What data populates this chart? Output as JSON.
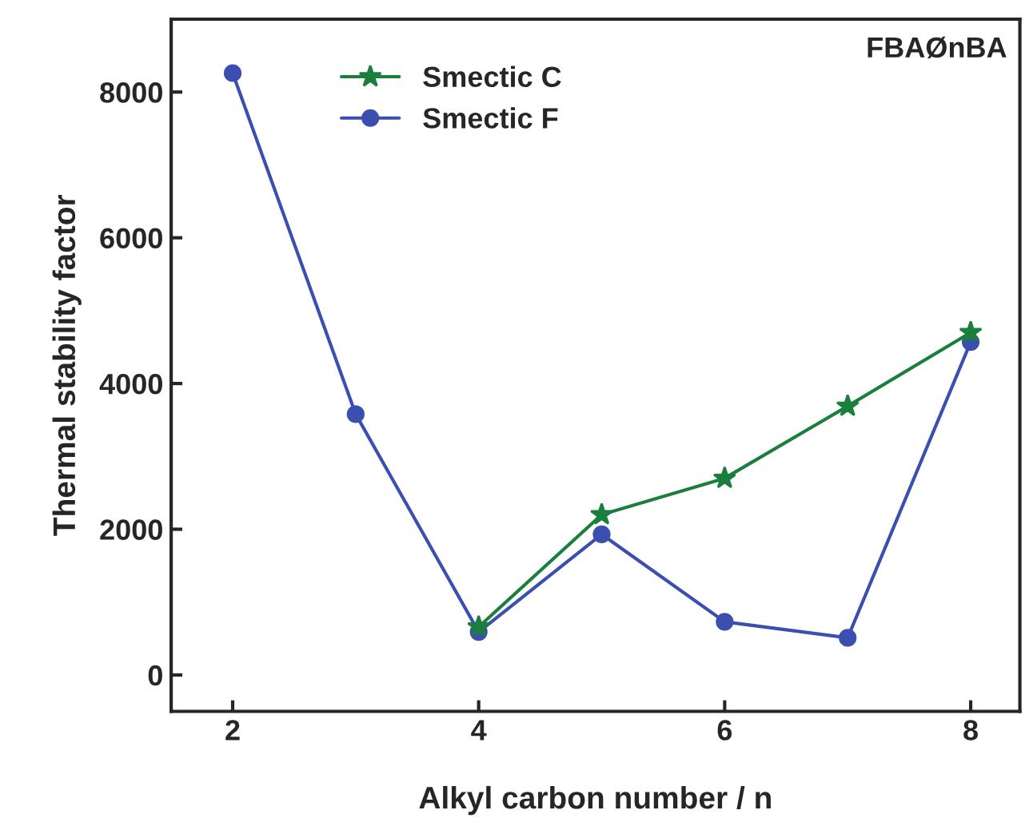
{
  "chart_data": {
    "type": "line",
    "xlabel": "Alkyl carbon number / n",
    "ylabel": "Thermal stability factor",
    "annotations": [
      "FBAØnBA"
    ],
    "series": [
      {
        "name": "Smectic C",
        "color": "#1a7f3c",
        "marker": "star",
        "x": [
          4,
          5,
          6,
          7,
          8
        ],
        "values": [
          660,
          2200,
          2700,
          3690,
          4700
        ]
      },
      {
        "name": "Smectic F",
        "color": "#3a4fb0",
        "marker": "circle",
        "x": [
          2,
          3,
          4,
          5,
          6,
          7,
          8
        ],
        "values": [
          8260,
          3580,
          590,
          1930,
          730,
          510,
          4570
        ]
      }
    ],
    "xlim": [
      1.5,
      8.4
    ],
    "xticks": [
      2,
      4,
      6,
      8
    ],
    "ylim": [
      -500,
      9000
    ],
    "yticks": [
      0,
      2000,
      4000,
      6000,
      8000
    ],
    "grid": false,
    "legend": "top left",
    "line_style": "solid"
  }
}
